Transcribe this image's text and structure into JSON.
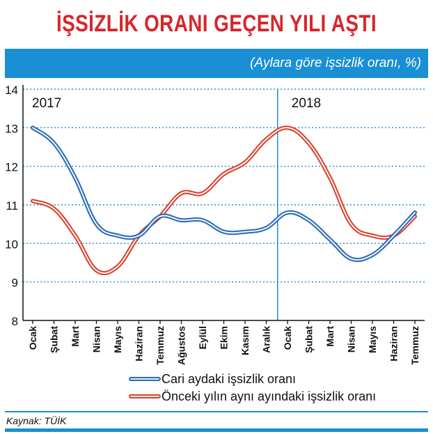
{
  "header": {
    "title": "İŞSİZLİK ORANI GEÇEN YILI AŞTI",
    "subtitle": "(Aylara göre işsizlik oranı, %)"
  },
  "footer": {
    "source": "Kaynak: TÜİK"
  },
  "colors": {
    "accent": "#1a8fd4",
    "title": "#d7262b",
    "series_current": "#2e6db5",
    "series_previous": "#d9452f"
  },
  "chart_data": {
    "type": "line",
    "categories": [
      "Ocak",
      "Şubat",
      "Mart",
      "Nisan",
      "Mayıs",
      "Haziran",
      "Temmuz",
      "Ağustos",
      "Eylül",
      "Ekim",
      "Kasım",
      "Aralık",
      "Ocak",
      "Şubat",
      "Mart",
      "Nisan",
      "Mayıs",
      "Haziran",
      "Temmuz"
    ],
    "year_labels": [
      {
        "label": "2017",
        "category_index": 0
      },
      {
        "label": "2018",
        "category_index": 12
      }
    ],
    "divider_after_index": 11.5,
    "ylim": [
      8,
      14
    ],
    "yticks": [
      8,
      9,
      10,
      11,
      12,
      13,
      14
    ],
    "grid": true,
    "legend_position": "bottom",
    "series": [
      {
        "name": "Cari aydaki işsizlik oranı",
        "values": [
          13.0,
          12.6,
          11.7,
          10.5,
          10.2,
          10.2,
          10.7,
          10.6,
          10.6,
          10.3,
          10.3,
          10.4,
          10.8,
          10.6,
          10.1,
          9.6,
          9.7,
          10.2,
          10.8
        ]
      },
      {
        "name": "Önceki yılın aynı ayındaki işsizlik oranı",
        "values": [
          11.1,
          10.9,
          10.2,
          9.3,
          9.4,
          10.2,
          10.7,
          11.3,
          11.3,
          11.8,
          12.1,
          12.7,
          13.0,
          12.6,
          11.7,
          10.5,
          10.2,
          10.2,
          10.7
        ]
      }
    ]
  }
}
